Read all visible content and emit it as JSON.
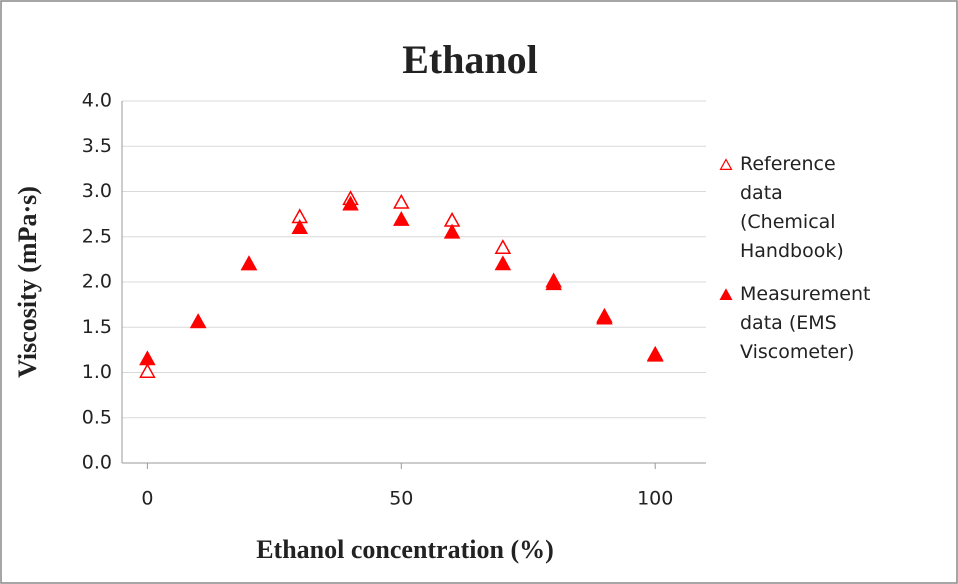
{
  "chart_data": {
    "type": "scatter",
    "title": "Ethanol",
    "xlabel": "Ethanol concentration (%)",
    "ylabel": "Viscosity (mPa·s)",
    "x": [
      0,
      10,
      20,
      30,
      40,
      50,
      60,
      70,
      80,
      90,
      100
    ],
    "series": [
      {
        "name": "Reference data (Chemical Handbook)",
        "color": "#ff0000",
        "filled": false,
        "values": [
          1.01,
          1.56,
          2.2,
          2.72,
          2.92,
          2.88,
          2.68,
          2.38,
          2.01,
          1.62,
          1.2
        ]
      },
      {
        "name": "Measurement data (EMS Viscometer)",
        "color": "#ff0000",
        "filled": true,
        "values": [
          1.15,
          1.56,
          2.2,
          2.6,
          2.86,
          2.69,
          2.55,
          2.2,
          1.98,
          1.6,
          1.19
        ]
      }
    ],
    "xlim": [
      -5,
      110
    ],
    "xticks": [
      0,
      50,
      100
    ],
    "ylim": [
      0,
      4
    ],
    "yticks": [
      {
        "value": 0,
        "label": "0.0"
      },
      0.5,
      {
        "value": 1,
        "label": "1.0"
      },
      1.5,
      {
        "value": 2,
        "label": "2.0"
      },
      2.5,
      {
        "value": 3,
        "label": "3.0"
      },
      3.5,
      {
        "value": 4,
        "label": "4.0"
      }
    ],
    "grid": true,
    "legend": "right"
  }
}
